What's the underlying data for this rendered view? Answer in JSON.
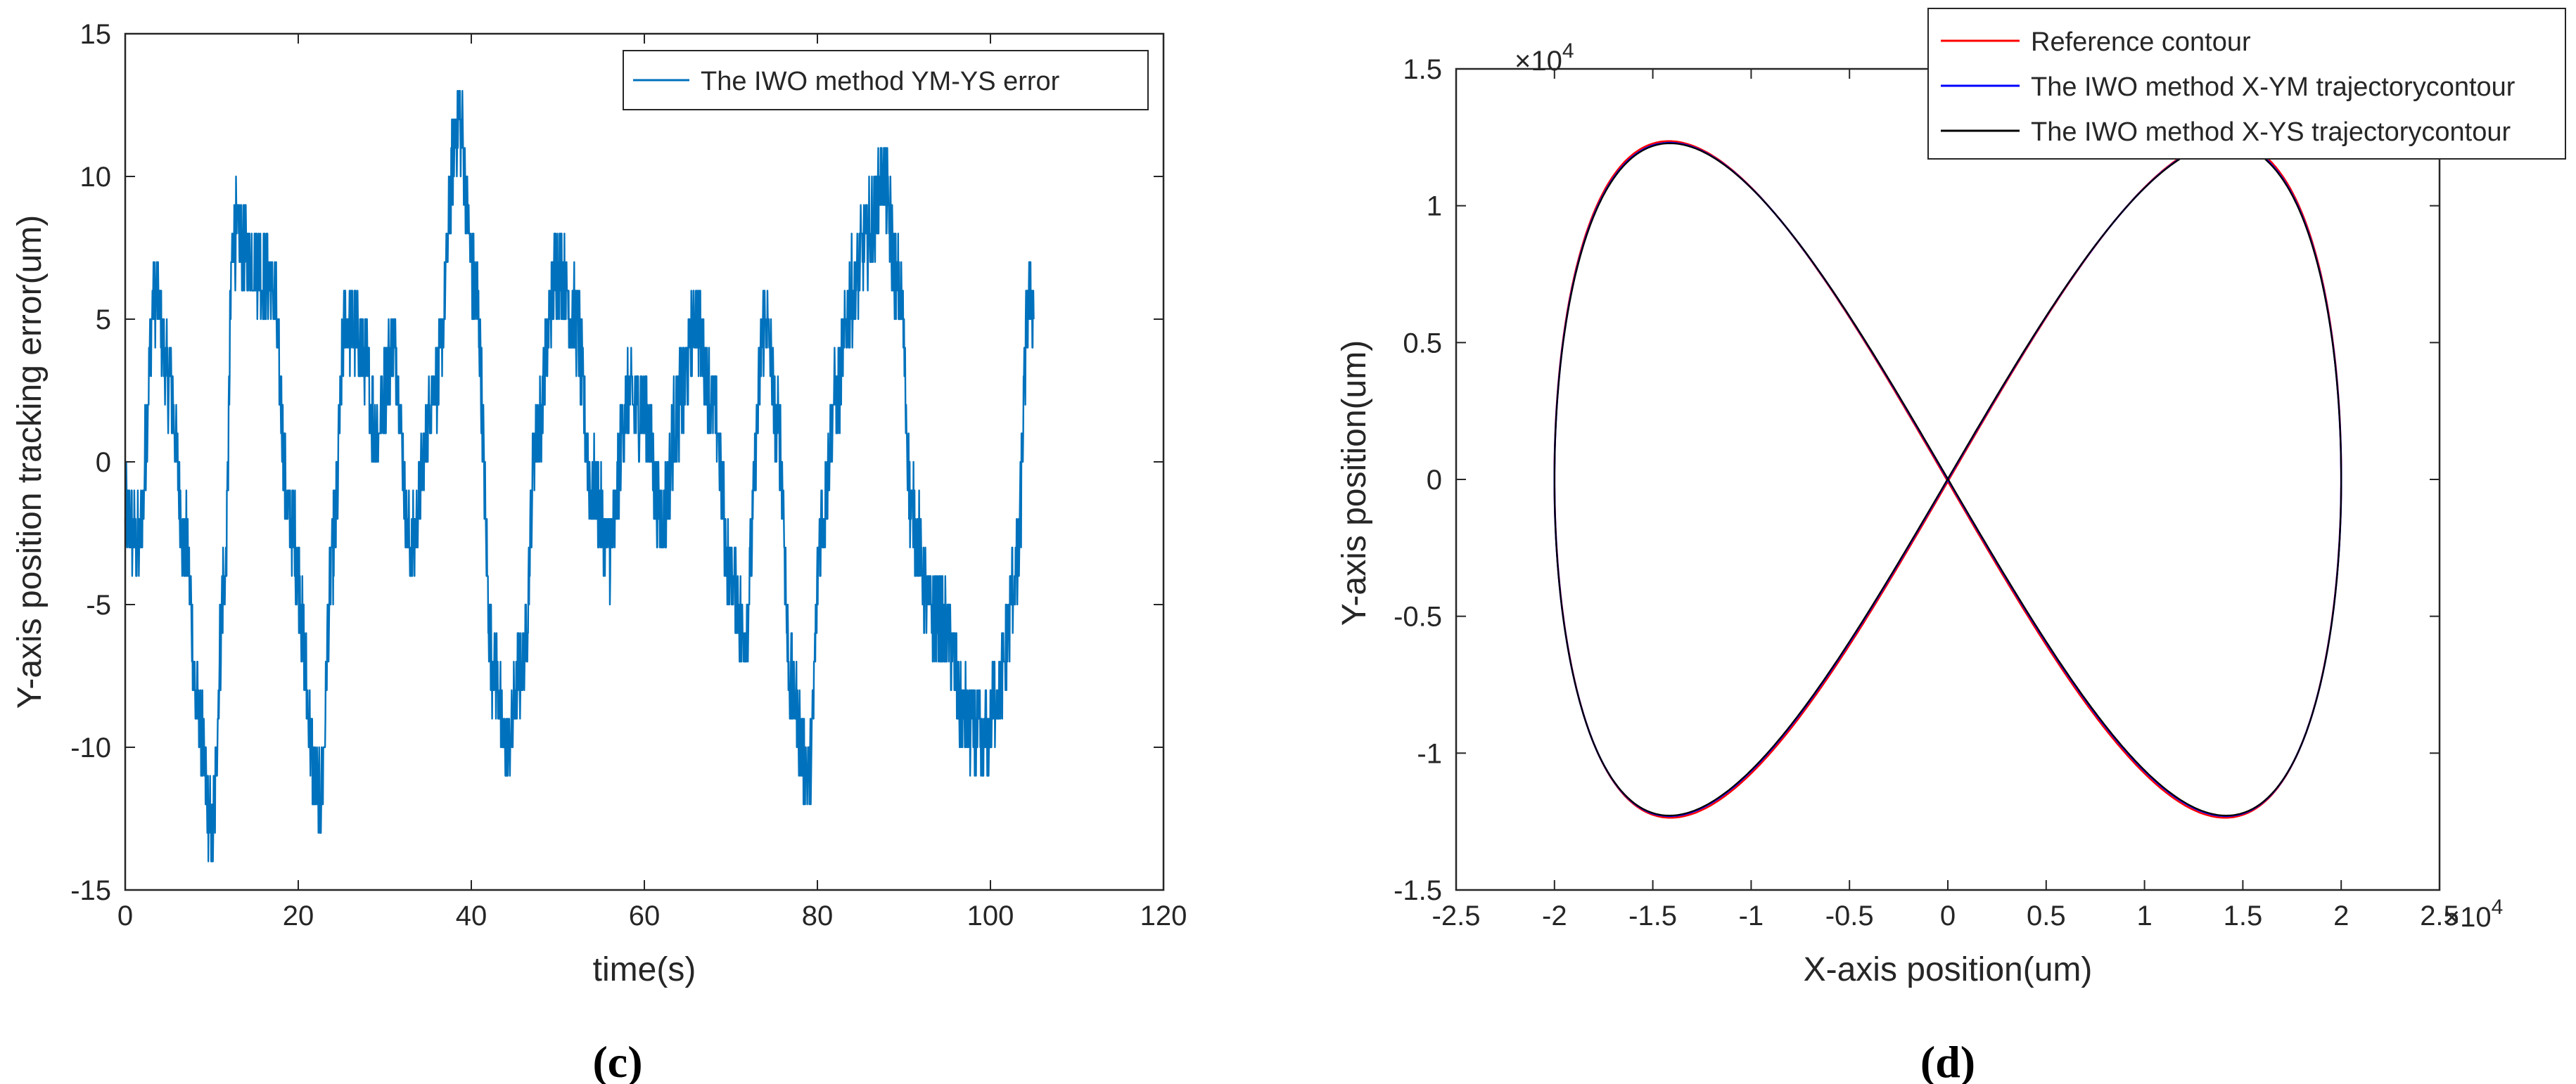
{
  "charts": [
    {
      "panel_label": "(c)",
      "chart_data": {
        "type": "line",
        "title": "",
        "xlabel": "time(s)",
        "ylabel": "Y-axis position tracking error(um)",
        "xlim": [
          0,
          120
        ],
        "ylim": [
          -15,
          15
        ],
        "xticks": [
          0,
          20,
          40,
          60,
          80,
          100,
          120
        ],
        "yticks": [
          -15,
          -10,
          -5,
          0,
          5,
          10,
          15
        ],
        "xtick_labels": [
          "0",
          "20",
          "40",
          "60",
          "80",
          "100",
          "120"
        ],
        "ytick_labels": [
          "-15",
          "-10",
          "-5",
          "0",
          "5",
          "10",
          "15"
        ],
        "grid": false,
        "legend_position": "top-right",
        "series": [
          {
            "name": "The IWO method YM-YS error",
            "color": "#0072BD",
            "noise_amplitude_um": 1.6,
            "x": [
              0,
              1.5,
              3.5,
              5,
              7,
              8.5,
              10,
              11.5,
              12.5,
              15,
              17,
              19,
              22.5,
              24,
              25.5,
              27.5,
              29,
              31,
              33,
              36,
              38.5,
              40.5,
              42.5,
              44,
              46,
              47.5,
              50,
              52,
              54,
              56,
              58,
              60,
              62,
              64,
              66,
              68,
              70,
              71.5,
              74,
              75.5,
              77,
              79,
              80.5,
              82,
              84,
              86,
              87.5,
              89.5,
              91,
              93,
              95,
              97,
              99,
              101,
              103,
              104.5,
              105
            ],
            "y": [
              -2,
              -3,
              6,
              3,
              -3,
              -9,
              -13,
              -4,
              8,
              7,
              6,
              -2,
              -12,
              -3,
              5,
              4,
              1,
              4,
              -3,
              3,
              12,
              6,
              -7,
              -10,
              -7,
              1,
              7,
              5,
              -1,
              -3,
              2,
              2,
              -2,
              2,
              5,
              2,
              -4,
              -6,
              5,
              1,
              -8,
              -11,
              -2,
              2,
              6,
              8,
              10,
              6,
              -2,
              -5,
              -6,
              -9,
              -10,
              -8,
              -4,
              6,
              5
            ]
          }
        ]
      }
    },
    {
      "panel_label": "(d)",
      "chart_data": {
        "type": "line",
        "title": "",
        "xlabel": "X-axis position(um)",
        "ylabel": "Y-axis position(um)",
        "x_exponent_label": "×10",
        "x_exponent_power": "4",
        "y_exponent_label": "×10",
        "y_exponent_power": "4",
        "xlim": [
          -2.5,
          2.5
        ],
        "ylim": [
          -1.5,
          1.5
        ],
        "xticks": [
          -2.5,
          -2,
          -1.5,
          -1,
          -0.5,
          0,
          0.5,
          1,
          1.5,
          2,
          2.5
        ],
        "yticks": [
          -1.5,
          -1,
          -0.5,
          0,
          0.5,
          1,
          1.5
        ],
        "xtick_labels": [
          "-2.5",
          "-2",
          "-1.5",
          "-1",
          "-0.5",
          "0",
          "0.5",
          "1",
          "1.5",
          "2",
          "2.5"
        ],
        "ytick_labels": [
          "-1.5",
          "-1",
          "-0.5",
          "0",
          "0.5",
          "1",
          "1.5"
        ],
        "grid": false,
        "legend_position": "top-right",
        "curve": "figure-eight x = 2.0e4·sin(t), y = 1.23e4·sin(2t)·(shape factor)",
        "x_amplitude": 2.0,
        "y_amplitude": 1.23,
        "series": [
          {
            "name": "Reference contour",
            "color": "#ff0000"
          },
          {
            "name": "The IWO method X-YM trajectorycontour",
            "color": "#0000ff"
          },
          {
            "name": "The IWO method X-YS trajectorycontour",
            "color": "#000000"
          }
        ]
      }
    }
  ]
}
